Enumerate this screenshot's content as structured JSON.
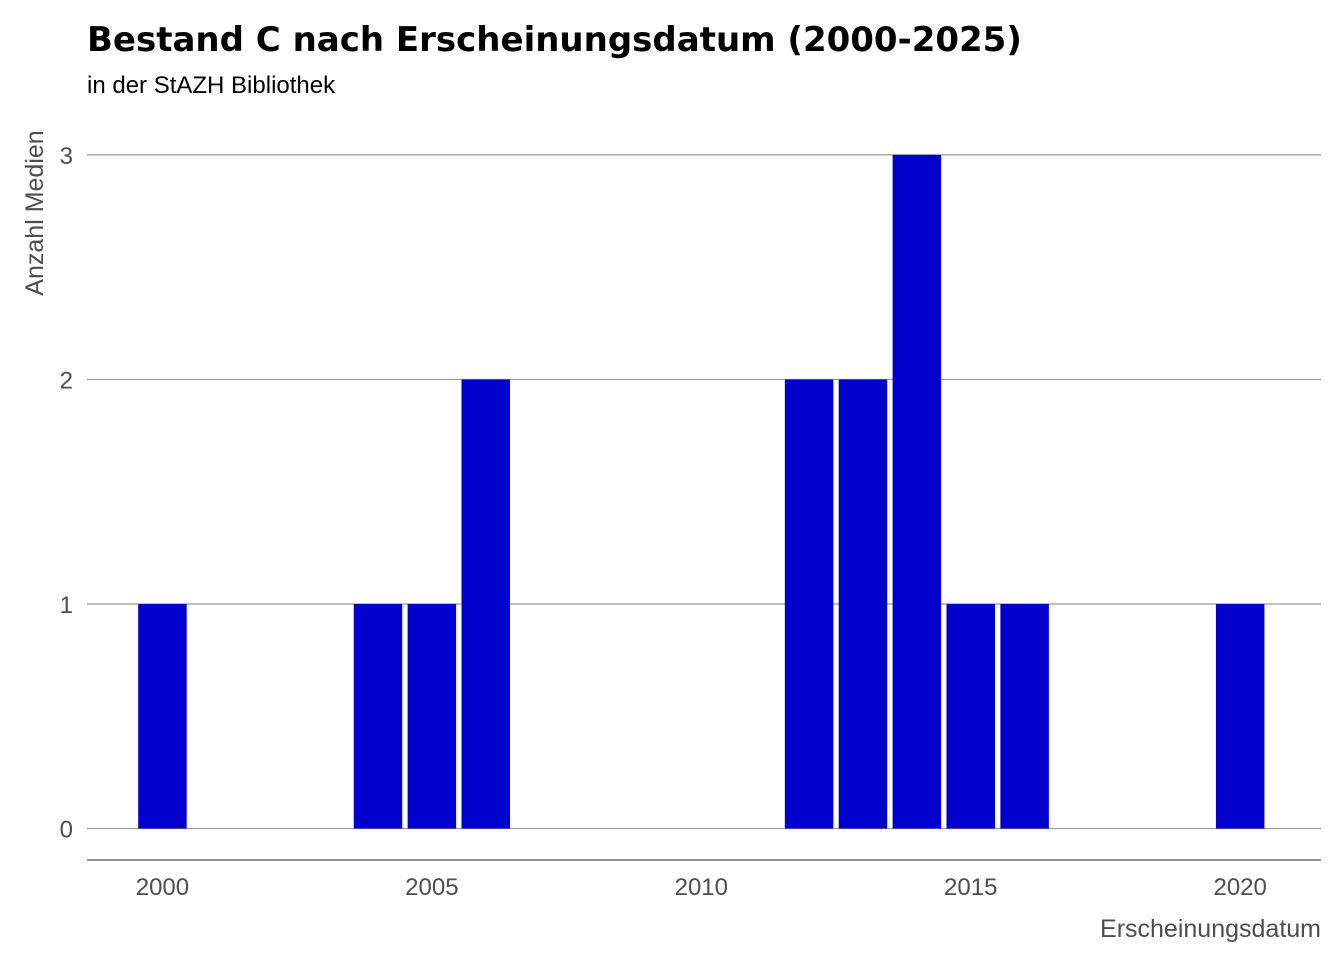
{
  "chart_data": {
    "type": "bar",
    "title": "Bestand C nach Erscheinungsdatum (2000-2025)",
    "subtitle": "in der StAZH Bibliothek",
    "xlabel": "Erscheinungsdatum",
    "ylabel": "Anzahl Medien",
    "x": [
      2000,
      2004,
      2005,
      2006,
      2012,
      2013,
      2014,
      2015,
      2016,
      2020
    ],
    "values": [
      1,
      1,
      1,
      2,
      2,
      2,
      3,
      1,
      1,
      1
    ],
    "xlim": [
      1998.6,
      2021.5
    ],
    "ylim": [
      -0.14,
      3.2
    ],
    "xticks": [
      2000,
      2005,
      2010,
      2015,
      2020
    ],
    "yticks": [
      0,
      1,
      2,
      3
    ],
    "grid": "horizontal",
    "bar_color": "#0000CC"
  }
}
